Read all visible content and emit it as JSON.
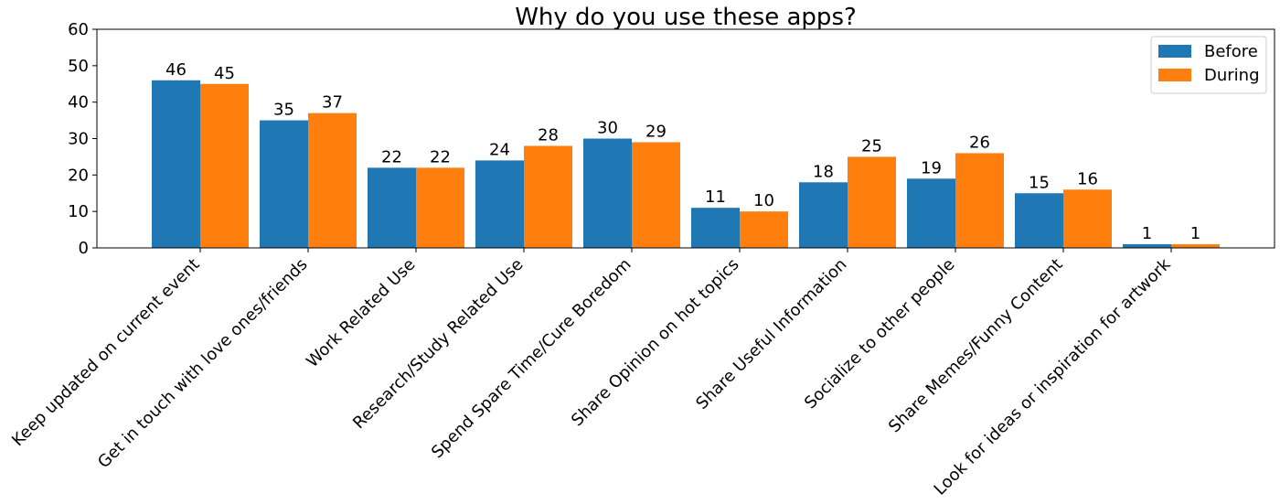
{
  "chart_data": {
    "type": "bar",
    "title": "Why do you use these apps?",
    "xlabel": "",
    "ylabel": "",
    "ylim": [
      0,
      60
    ],
    "yticks": [
      0,
      10,
      20,
      30,
      40,
      50,
      60
    ],
    "grid": false,
    "legend_position": "top-right",
    "categories": [
      "Keep updated on current event",
      "Get in touch with love ones/friends",
      "Work Related Use",
      "Research/Study Related Use",
      "Spend Spare Time/Cure Boredom",
      "Share Opinion on hot topics",
      "Share Useful Information",
      "Socialize to other people",
      "Share Memes/Funny Content",
      "Look for ideas or inspiration for artwork"
    ],
    "series": [
      {
        "name": "Before",
        "color": "#1f77b4",
        "values": [
          46,
          35,
          22,
          24,
          30,
          11,
          18,
          19,
          15,
          1
        ]
      },
      {
        "name": "During",
        "color": "#ff7f0e",
        "values": [
          45,
          37,
          22,
          28,
          29,
          10,
          25,
          26,
          16,
          1
        ]
      }
    ]
  }
}
